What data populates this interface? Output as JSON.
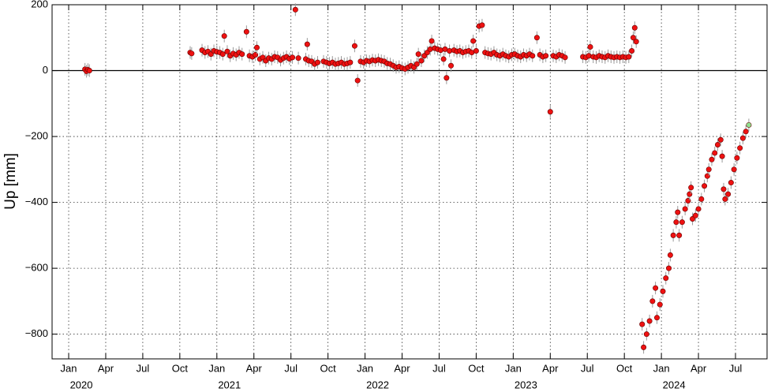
{
  "chart_data": {
    "type": "scatter",
    "y_label": "Up [mm]",
    "color": "#ee1111",
    "last_point_color": "#8fe08f",
    "grid": true,
    "zero_line": true,
    "xlim": [
      2019.888,
      2024.713
    ],
    "ylim": [
      -875,
      200
    ],
    "yticks": [
      {
        "value": -800,
        "label": "−800"
      },
      {
        "value": -600,
        "label": "−600"
      },
      {
        "value": -400,
        "label": "−400"
      },
      {
        "value": -200,
        "label": "−200"
      },
      0,
      200
    ],
    "xticks": [
      {
        "value": 2020.0,
        "label": "Jan"
      },
      {
        "value": 2020.25,
        "label": "Apr"
      },
      {
        "value": 2020.5,
        "label": "Jul"
      },
      {
        "value": 2020.75,
        "label": "Oct"
      },
      {
        "value": 2021.0,
        "label": "Jan"
      },
      {
        "value": 2021.25,
        "label": "Apr"
      },
      {
        "value": 2021.5,
        "label": "Jul"
      },
      {
        "value": 2021.75,
        "label": "Oct"
      },
      {
        "value": 2022.0,
        "label": "Jan"
      },
      {
        "value": 2022.25,
        "label": "Apr"
      },
      {
        "value": 2022.5,
        "label": "Jul"
      },
      {
        "value": 2022.75,
        "label": "Oct"
      },
      {
        "value": 2023.0,
        "label": "Jan"
      },
      {
        "value": 2023.25,
        "label": "Apr"
      },
      {
        "value": 2023.5,
        "label": "Jul"
      },
      {
        "value": 2023.75,
        "label": "Oct"
      },
      {
        "value": 2024.0,
        "label": "Jan"
      },
      {
        "value": 2024.25,
        "label": "Apr"
      },
      {
        "value": 2024.5,
        "label": "Jul"
      }
    ],
    "year_ticks": [
      2020,
      2021,
      2022,
      2023,
      2024
    ],
    "x": [
      2020.11,
      2020.12,
      2020.13,
      2020.14,
      2020.82,
      2020.83,
      2020.9,
      2020.92,
      2020.94,
      2020.96,
      2020.98,
      2021.0,
      2021.02,
      2021.04,
      2021.05,
      2021.07,
      2021.09,
      2021.11,
      2021.13,
      2021.15,
      2021.17,
      2021.2,
      2021.22,
      2021.24,
      2021.26,
      2021.27,
      2021.29,
      2021.31,
      2021.33,
      2021.35,
      2021.37,
      2021.39,
      2021.41,
      2021.43,
      2021.45,
      2021.47,
      2021.49,
      2021.51,
      2021.53,
      2021.55,
      2021.6,
      2021.61,
      2021.62,
      2021.64,
      2021.66,
      2021.68,
      2021.72,
      2021.74,
      2021.76,
      2021.78,
      2021.8,
      2021.82,
      2021.84,
      2021.86,
      2021.88,
      2021.9,
      2021.93,
      2021.95,
      2021.97,
      2021.99,
      2022.01,
      2022.03,
      2022.05,
      2022.07,
      2022.09,
      2022.11,
      2022.13,
      2022.15,
      2022.17,
      2022.19,
      2022.21,
      2022.23,
      2022.25,
      2022.27,
      2022.29,
      2022.31,
      2022.33,
      2022.35,
      2022.36,
      2022.38,
      2022.4,
      2022.42,
      2022.44,
      2022.45,
      2022.47,
      2022.49,
      2022.51,
      2022.53,
      2022.54,
      2022.55,
      2022.57,
      2022.58,
      2022.6,
      2022.62,
      2022.64,
      2022.66,
      2022.68,
      2022.7,
      2022.72,
      2022.73,
      2022.75,
      2022.77,
      2022.79,
      2022.81,
      2022.83,
      2022.85,
      2022.87,
      2022.89,
      2022.91,
      2022.93,
      2022.95,
      2022.97,
      2022.99,
      2023.01,
      2023.03,
      2023.05,
      2023.07,
      2023.09,
      2023.11,
      2023.13,
      2023.16,
      2023.18,
      2023.2,
      2023.22,
      2023.25,
      2023.27,
      2023.29,
      2023.31,
      2023.33,
      2023.35,
      2023.47,
      2023.49,
      2023.51,
      2023.52,
      2023.54,
      2023.56,
      2023.58,
      2023.6,
      2023.62,
      2023.64,
      2023.66,
      2023.68,
      2023.7,
      2023.72,
      2023.74,
      2023.76,
      2023.78,
      2023.8,
      2023.81,
      2023.82,
      2023.83,
      2023.87,
      2023.88,
      2023.9,
      2023.92,
      2023.94,
      2023.96,
      2023.97,
      2023.99,
      2024.01,
      2024.03,
      2024.05,
      2024.06,
      2024.08,
      2024.1,
      2024.11,
      2024.12,
      2024.14,
      2024.16,
      2024.18,
      2024.19,
      2024.2,
      2024.21,
      2024.23,
      2024.25,
      2024.27,
      2024.29,
      2024.31,
      2024.32,
      2024.34,
      2024.36,
      2024.38,
      2024.4,
      2024.41,
      2024.42,
      2024.43,
      2024.45,
      2024.47,
      2024.49,
      2024.51,
      2024.53,
      2024.55,
      2024.57,
      2024.59
    ],
    "y": [
      4,
      -2,
      3,
      0,
      55,
      52,
      62,
      55,
      58,
      50,
      60,
      57,
      55,
      50,
      105,
      58,
      45,
      52,
      48,
      55,
      50,
      118,
      45,
      42,
      48,
      70,
      35,
      40,
      30,
      38,
      35,
      42,
      40,
      32,
      38,
      42,
      36,
      40,
      185,
      38,
      35,
      80,
      30,
      28,
      20,
      25,
      28,
      25,
      22,
      25,
      20,
      22,
      25,
      20,
      22,
      25,
      75,
      -30,
      28,
      25,
      30,
      28,
      32,
      30,
      33,
      30,
      28,
      22,
      20,
      15,
      10,
      12,
      8,
      5,
      10,
      15,
      10,
      20,
      50,
      30,
      45,
      55,
      65,
      90,
      68,
      65,
      62,
      35,
      65,
      -22,
      60,
      15,
      62,
      58,
      60,
      55,
      58,
      60,
      55,
      90,
      60,
      135,
      138,
      55,
      52,
      50,
      55,
      48,
      45,
      50,
      45,
      42,
      48,
      50,
      45,
      42,
      48,
      45,
      50,
      45,
      100,
      48,
      42,
      45,
      -125,
      45,
      42,
      48,
      45,
      40,
      42,
      40,
      45,
      72,
      42,
      40,
      45,
      42,
      40,
      45,
      42,
      40,
      42,
      40,
      42,
      40,
      42,
      60,
      100,
      130,
      88,
      -770,
      -840,
      -800,
      -760,
      -700,
      -660,
      -750,
      -710,
      -670,
      -630,
      -600,
      -560,
      -500,
      -460,
      -430,
      -500,
      -460,
      -420,
      -395,
      -375,
      -355,
      -450,
      -440,
      -420,
      -390,
      -350,
      -320,
      -300,
      -270,
      -250,
      -225,
      -210,
      -260,
      -360,
      -390,
      -375,
      -340,
      -300,
      -265,
      -235,
      -205,
      -185,
      -165
    ]
  }
}
